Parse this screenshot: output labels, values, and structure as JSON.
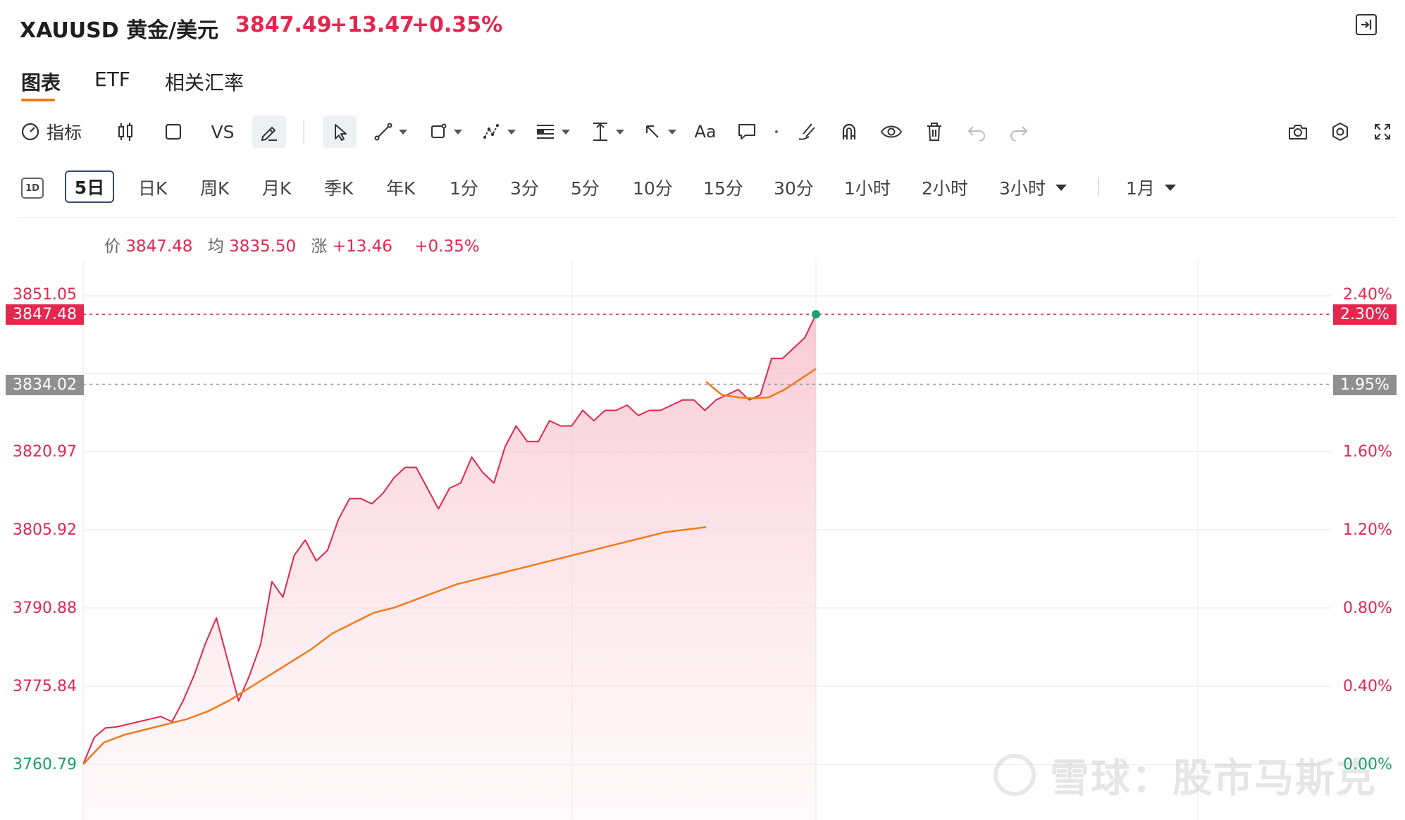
{
  "header": {
    "title": "XAUUSD 黄金/美元",
    "price": "3847.49",
    "change": "+13.47",
    "change_pct": "+0.35%",
    "accent_color": "#e3274f"
  },
  "tabs": [
    {
      "label": "图表",
      "active": true
    },
    {
      "label": "ETF",
      "active": false
    },
    {
      "label": "相关汇率",
      "active": false
    }
  ],
  "toolbar": {
    "indicator_label": "指标",
    "vs_label": "VS",
    "text_label": "Aa",
    "icons": [
      "gauge-icon",
      "candlestick-icon",
      "square-icon",
      "pencil-icon",
      "cursor-icon",
      "trend-line-icon",
      "shape-icon",
      "pattern-icon",
      "fib-icon",
      "measure-icon",
      "arrow-icon",
      "text-icon",
      "comment-icon",
      "dot-icon",
      "brush-icon",
      "magnet-icon",
      "eye-icon",
      "trash-icon",
      "undo-icon",
      "redo-icon",
      "camera-icon",
      "settings-icon",
      "fullscreen-icon"
    ]
  },
  "periods": {
    "day_icon": "1D",
    "items": [
      "5日",
      "日K",
      "周K",
      "月K",
      "季K",
      "年K",
      "1分",
      "3分",
      "5分",
      "10分",
      "15分",
      "30分",
      "1小时",
      "2小时"
    ],
    "dropdown1": "3小时",
    "dropdown2": "1月",
    "active": "5日"
  },
  "info": {
    "price_label": "价",
    "price": "3847.48",
    "avg_label": "均",
    "avg": "3835.50",
    "chg_label": "涨",
    "chg": "+13.46",
    "pct": "+0.35%"
  },
  "chart_data": {
    "type": "line",
    "y_ticks_left": [
      "3851.05",
      "3820.97",
      "3805.92",
      "3790.88",
      "3775.84",
      "3760.79"
    ],
    "y_ticks_right": [
      "2.40%",
      "1.60%",
      "1.20%",
      "0.80%",
      "0.40%",
      "0.00%"
    ],
    "ylim": [
      3760.79,
      3851.05
    ],
    "current_price_badge": "3847.48",
    "current_pct_badge": "2.30%",
    "prev_close_badge": "3834.02",
    "prev_close_pct_badge": "1.95%",
    "series": [
      {
        "color": "#e3274f",
        "values": [
          3760.8,
          3766,
          3767.8,
          3768,
          3768.5,
          3769,
          3769.5,
          3770,
          3769,
          3773,
          3778,
          3784,
          3789,
          3781,
          3773,
          3778,
          3784,
          3796,
          3793,
          3801,
          3804,
          3800,
          3802,
          3808,
          3812,
          3812,
          3811,
          3813,
          3816,
          3818,
          3818,
          3814,
          3810,
          3814,
          3815,
          3820,
          3817,
          3815,
          3822,
          3826,
          3823,
          3823,
          3827,
          3826,
          3826,
          3829,
          3827,
          3829,
          3829,
          3830,
          3828,
          3829,
          3829,
          3830,
          3831,
          3831,
          3829,
          3831,
          3832,
          3833,
          3831,
          3832,
          3839,
          3839,
          3841,
          3843,
          3847.5
        ]
      },
      {
        "color": "#f07a1a",
        "values": [
          3760.8,
          3765,
          3766.5,
          3767.5,
          3768.5,
          3769.5,
          3771,
          3773,
          3775.5,
          3778,
          3780.5,
          3783,
          3786,
          3788,
          3790,
          3791,
          3792.5,
          3794,
          3795.5,
          3796.5,
          3797.5,
          3798.5,
          3799.5,
          3800.5,
          3801.5,
          3802.5,
          3803.5,
          3804.5,
          3805.5,
          3806,
          3806.5
        ]
      },
      {
        "color": "#f07a1a",
        "values": [
          3834.5,
          3832,
          3831.5,
          3831.3,
          3831.5,
          3833,
          3835,
          3837
        ]
      }
    ]
  },
  "watermark": "雪球：股市马斯克"
}
